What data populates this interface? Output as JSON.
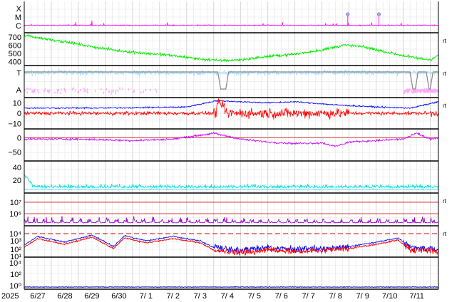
{
  "chart_data": {
    "type": "line",
    "x_start_label": "2025",
    "x_tick_labels": [
      "6/27",
      "6/28",
      "6/29",
      "6/30",
      "7/ 1",
      "7/ 2",
      "7/ 3",
      "7/ 4",
      "7/ 5",
      "7/ 6",
      "7/ 7",
      "7/ 8",
      "7/ 9",
      "7/10",
      "7/11"
    ],
    "x_range_days": [
      0,
      15.3
    ],
    "grid": true,
    "right_marker": "rt",
    "colors": {
      "xray": "#ff00ff",
      "speed": "#00ee00",
      "temp": "#99ddff",
      "alpha": "#ffaaff",
      "step": "#888888",
      "bt": "#0000ff",
      "bz": "#ff0000",
      "phi": "#cc00ff",
      "density": "#00dddd",
      "electron": "#9900cc",
      "proton_hi": "#0000ff",
      "proton_lo": "#ff0000",
      "refline": "#cc0000",
      "neutron": "#0000aa"
    },
    "panels": [
      {
        "name": "xray-flare-class",
        "y_tick_labels": [
          "X",
          "M",
          "C"
        ],
        "flare_markers_day": [
          11.95,
          13.1
        ]
      },
      {
        "name": "solar-wind-speed",
        "y_tick_labels": [
          "700",
          "600",
          "500",
          "400"
        ],
        "ylim": [
          350,
          750
        ],
        "speed_keypoints": [
          [
            0,
            720
          ],
          [
            0.5,
            690
          ],
          [
            1.5,
            640
          ],
          [
            2.5,
            580
          ],
          [
            3.5,
            530
          ],
          [
            4.5,
            500
          ],
          [
            5.5,
            470
          ],
          [
            6.5,
            430
          ],
          [
            7.2,
            410
          ],
          [
            8,
            420
          ],
          [
            9,
            460
          ],
          [
            10,
            490
          ],
          [
            11,
            540
          ],
          [
            11.8,
            600
          ],
          [
            12.5,
            580
          ],
          [
            13.3,
            520
          ],
          [
            14,
            470
          ],
          [
            14.5,
            440
          ],
          [
            15,
            420
          ],
          [
            15.3,
            480
          ]
        ]
      },
      {
        "name": "temperature-alpha",
        "y_tick_labels": [
          "T",
          "A"
        ],
        "step_dips_day": [
          [
            7.15,
            7.55
          ],
          [
            14.25,
            14.55
          ],
          [
            14.85,
            15.1
          ]
        ]
      },
      {
        "name": "imf-field",
        "y_tick_labels": [
          "10",
          "0",
          "−10"
        ],
        "ylim": [
          -15,
          15
        ]
      },
      {
        "name": "imf-angle",
        "y_tick_labels": [
          "0",
          "−50"
        ],
        "ylim": [
          -80,
          30
        ]
      },
      {
        "name": "density",
        "y_tick_labels": [
          "40",
          "20"
        ],
        "ylim": [
          0,
          50
        ]
      },
      {
        "name": "electron-flux",
        "y_tick_labels": [
          "10⁷",
          "10⁶"
        ]
      },
      {
        "name": "proton-flux",
        "y_tick_labels": [
          "10⁴",
          "10³",
          "10²",
          "10¹"
        ]
      },
      {
        "name": "neutron-flux",
        "y_tick_labels": [
          "10⁴",
          "10²",
          "10⁰"
        ]
      }
    ]
  }
}
